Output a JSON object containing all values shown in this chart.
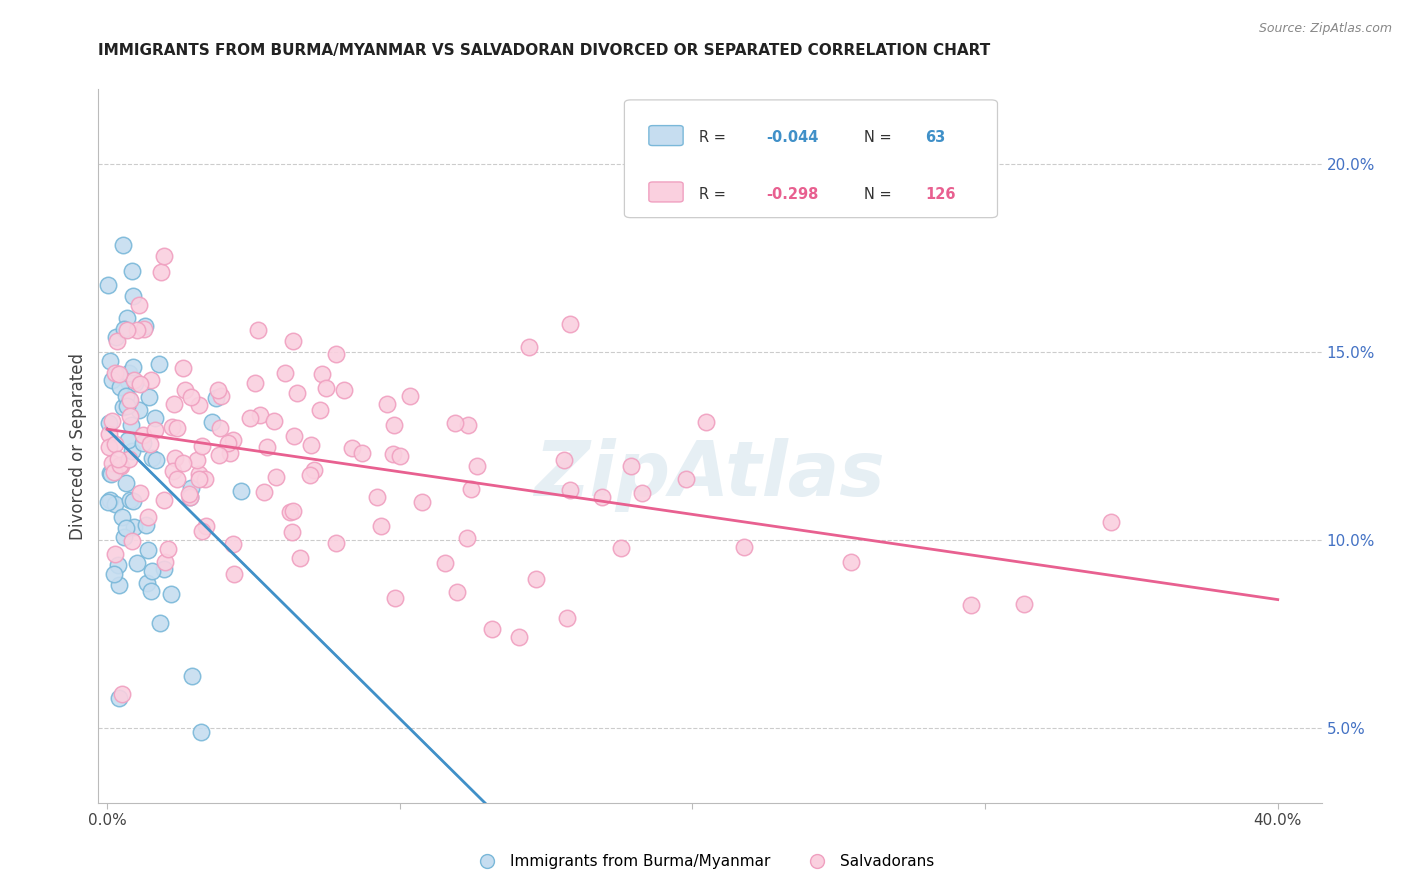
{
  "title": "IMMIGRANTS FROM BURMA/MYANMAR VS SALVADORAN DIVORCED OR SEPARATED CORRELATION CHART",
  "source": "Source: ZipAtlas.com",
  "ylabel": "Divorced or Separated",
  "legend_blue_label": "Immigrants from Burma/Myanmar",
  "legend_pink_label": "Salvadorans",
  "blue_scatter_color": "#c6ddf0",
  "blue_edge_color": "#7ab8d9",
  "pink_scatter_color": "#fad0df",
  "pink_edge_color": "#f0a0c0",
  "blue_line_color": "#4090c8",
  "pink_line_color": "#e86090",
  "blue_dashed_color": "#a0c8e8",
  "watermark_color": "#c8dce8",
  "grid_color": "#cccccc",
  "title_color": "#222222",
  "source_color": "#888888",
  "ylabel_color": "#444444",
  "ytick_color": "#4472c4",
  "xtick_color": "#444444",
  "legend_edge_color": "#cccccc",
  "ymin": 3.0,
  "ymax": 22.0,
  "xmin": -0.3,
  "xmax": 41.5,
  "yticks": [
    5.0,
    10.0,
    15.0,
    20.0
  ],
  "ytick_labels": [
    "5.0%",
    "10.0%",
    "15.0%",
    "20.0%"
  ],
  "xticks": [
    0,
    10,
    20,
    30,
    40
  ],
  "xtick_labels": [
    "0.0%",
    "",
    "",
    "",
    "40.0%"
  ]
}
